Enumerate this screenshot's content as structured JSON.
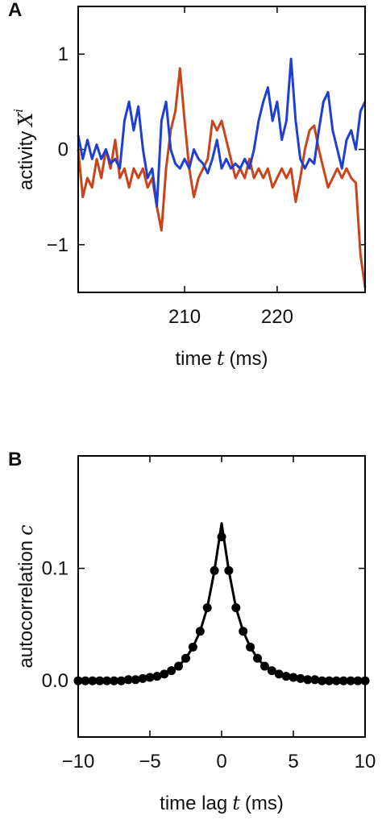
{
  "chart_data": [
    {
      "type": "line",
      "panel": "A",
      "ylabel": {
        "text": "activity",
        "var": "X",
        "sup": "i"
      },
      "xlabel": {
        "text": "time",
        "var": "t",
        "unit": "(ms)"
      },
      "xlim": [
        198.5,
        229.5
      ],
      "xticks": [
        210,
        220
      ],
      "ylim": [
        -1.5,
        1.5
      ],
      "yticks": [
        {
          "value": -1,
          "label": "−1"
        },
        0,
        1
      ],
      "x": [
        198.5,
        199,
        199.5,
        200,
        200.5,
        201,
        201.5,
        202,
        202.5,
        203,
        203.5,
        204,
        204.5,
        205,
        205.5,
        206,
        206.5,
        207,
        207.5,
        208,
        208.5,
        209,
        209.5,
        210,
        210.5,
        211,
        211.5,
        212,
        212.5,
        213,
        213.5,
        214,
        214.5,
        215,
        215.5,
        216,
        216.5,
        217,
        217.5,
        218,
        218.5,
        219,
        219.5,
        220,
        220.5,
        221,
        221.5,
        222,
        222.5,
        223,
        223.5,
        224,
        224.5,
        225,
        225.5,
        226,
        226.5,
        227,
        227.5,
        228,
        228.5,
        229,
        229.5
      ],
      "series": [
        {
          "color": "#c9441a",
          "marker": false,
          "values": [
            0.0,
            -0.5,
            -0.3,
            -0.4,
            -0.1,
            -0.3,
            0.0,
            -0.2,
            0.1,
            -0.3,
            -0.2,
            -0.4,
            -0.2,
            -0.3,
            -0.2,
            -0.4,
            -0.3,
            -0.6,
            -0.85,
            -0.2,
            0.2,
            0.4,
            0.85,
            0.3,
            -0.2,
            -0.5,
            -0.3,
            -0.2,
            -0.1,
            0.3,
            0.2,
            0.3,
            0.1,
            -0.1,
            -0.3,
            -0.2,
            -0.3,
            -0.1,
            -0.3,
            -0.2,
            -0.3,
            -0.2,
            -0.4,
            -0.3,
            -0.2,
            -0.3,
            -0.2,
            -0.55,
            -0.3,
            0.0,
            0.2,
            0.25,
            0.0,
            -0.2,
            -0.4,
            -0.3,
            -0.2,
            -0.3,
            -0.2,
            -0.3,
            -0.35,
            -1.1,
            -1.45
          ]
        },
        {
          "color": "#1f3fd0",
          "marker": false,
          "values": [
            0.15,
            -0.1,
            0.1,
            -0.1,
            0.05,
            -0.1,
            0.0,
            -0.15,
            -0.1,
            -0.2,
            0.3,
            0.5,
            0.2,
            0.45,
            0.0,
            -0.3,
            -0.2,
            -0.6,
            0.3,
            0.5,
            0.0,
            -0.15,
            -0.2,
            -0.1,
            -0.2,
            0.0,
            -0.1,
            -0.15,
            -0.25,
            -0.1,
            0.1,
            -0.2,
            -0.1,
            -0.2,
            -0.15,
            -0.2,
            -0.1,
            -0.2,
            0.0,
            0.3,
            0.5,
            0.65,
            0.3,
            0.5,
            0.1,
            0.3,
            0.95,
            0.3,
            -0.1,
            -0.2,
            -0.1,
            -0.15,
            0.2,
            0.5,
            0.6,
            0.2,
            0.0,
            -0.2,
            0.1,
            0.2,
            0.0,
            0.4,
            0.5
          ]
        }
      ]
    },
    {
      "type": "line",
      "panel": "B",
      "ylabel": {
        "text": "autocorrelation",
        "var": "c"
      },
      "xlabel": {
        "text": "time lag",
        "var": "t",
        "unit": "(ms)"
      },
      "xlim": [
        -10,
        10
      ],
      "xticks": [
        {
          "value": -10,
          "label": "−10"
        },
        {
          "value": -5,
          "label": "−5"
        },
        0,
        5,
        10
      ],
      "ylim": [
        -0.05,
        0.2
      ],
      "yticks": [
        {
          "value": 0,
          "label": "0.0"
        },
        0.1
      ],
      "x": [
        -10,
        -9.5,
        -9,
        -8.5,
        -8,
        -7.5,
        -7,
        -6.5,
        -6,
        -5.5,
        -5,
        -4.5,
        -4,
        -3.5,
        -3,
        -2.5,
        -2,
        -1.5,
        -1,
        -0.5,
        0,
        0.5,
        1,
        1.5,
        2,
        2.5,
        3,
        3.5,
        4,
        4.5,
        5,
        5.5,
        6,
        6.5,
        7,
        7.5,
        8,
        8.5,
        9,
        9.5,
        10
      ],
      "series": [
        {
          "color": "#000000",
          "marker": false,
          "values": [
            0,
            0,
            0,
            0,
            0,
            0,
            0,
            0.001,
            0.001,
            0.002,
            0.003,
            0.004,
            0.006,
            0.009,
            0.013,
            0.02,
            0.03,
            0.044,
            0.065,
            0.098,
            0.14,
            0.098,
            0.065,
            0.044,
            0.03,
            0.02,
            0.013,
            0.009,
            0.006,
            0.004,
            0.003,
            0.002,
            0.001,
            0.001,
            0,
            0,
            0,
            0,
            0,
            0,
            0
          ]
        },
        {
          "color": "#000000",
          "marker": true,
          "values": [
            0,
            0,
            0,
            0,
            0,
            0,
            0,
            0.001,
            0.001,
            0.002,
            0.003,
            0.004,
            0.006,
            0.009,
            0.013,
            0.02,
            0.03,
            0.044,
            0.065,
            0.098,
            0.128,
            0.098,
            0.065,
            0.044,
            0.03,
            0.02,
            0.013,
            0.009,
            0.006,
            0.004,
            0.003,
            0.002,
            0.001,
            0.001,
            0,
            0,
            0,
            0,
            0,
            0,
            0
          ]
        }
      ]
    }
  ]
}
